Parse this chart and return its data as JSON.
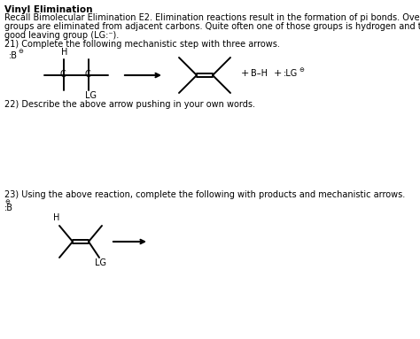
{
  "title": "Vinyl Elimination",
  "line1": "Recall Bimolecular Elimination E2. Elimination reactions result in the formation of pi bonds. Overall, two",
  "line2": "groups are eliminated from adjacent carbons. Quite often one of those groups is hydrogen and the other is a",
  "line3": "good leaving group (LG:⁻).",
  "q21": "21) Complete the following mechanistic step with three arrows.",
  "q22": "22) Describe the above arrow pushing in your own words.",
  "q23": "23) Using the above reaction, complete the following with products and mechanistic arrows.",
  "bg_color": "#ffffff",
  "text_color": "#000000"
}
